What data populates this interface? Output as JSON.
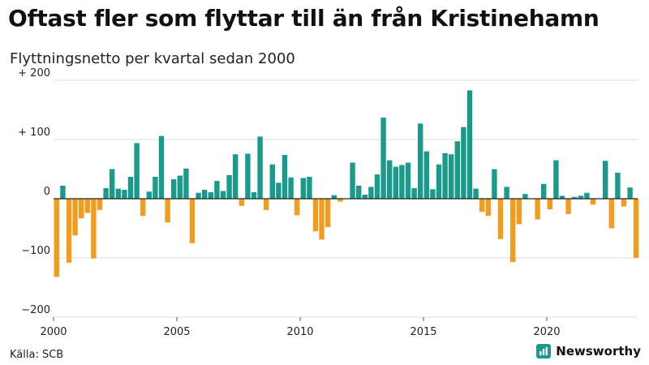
{
  "title": "Oftast fler som flyttar till än från Kristinehamn",
  "subtitle": "Flyttningsnetto per kvartal sedan 2000",
  "source": "Källa: SCB",
  "brand": {
    "name": "Newsworthy",
    "color": "#1c9a8a"
  },
  "colors": {
    "positive": "#1a9a8a",
    "negative": "#f29c1d",
    "grid": "#dddddd",
    "zero": "#222222"
  },
  "chart_data": {
    "type": "bar",
    "y_ticks": [
      {
        "value": 200,
        "label": "+ 200"
      },
      {
        "value": 100,
        "label": "+ 100"
      },
      {
        "value": 0,
        "label": "0"
      },
      {
        "value": -100,
        "label": "−100"
      },
      {
        "value": -200,
        "label": "−200"
      }
    ],
    "x_ticks": [
      {
        "value": 2000,
        "label": "2000"
      },
      {
        "value": 2005,
        "label": "2005"
      },
      {
        "value": 2010,
        "label": "2010"
      },
      {
        "value": 2015,
        "label": "2015"
      },
      {
        "value": 2020,
        "label": "2020"
      }
    ],
    "ylim": [
      -200,
      200
    ],
    "x_start": 2000,
    "periods_per_year": 4,
    "values": [
      -132,
      22,
      -108,
      -62,
      -33,
      -24,
      -101,
      -19,
      18,
      50,
      17,
      15,
      37,
      94,
      -29,
      12,
      37,
      106,
      -40,
      33,
      39,
      51,
      -75,
      10,
      15,
      11,
      30,
      13,
      40,
      75,
      -12,
      76,
      11,
      105,
      -19,
      58,
      27,
      74,
      36,
      -28,
      35,
      37,
      -55,
      -69,
      -48,
      6,
      -5,
      0,
      61,
      22,
      7,
      20,
      41,
      137,
      65,
      54,
      57,
      61,
      18,
      127,
      80,
      16,
      58,
      77,
      75,
      97,
      121,
      183,
      17,
      -22,
      -29,
      50,
      -68,
      20,
      -107,
      -43,
      8,
      0,
      -35,
      25,
      -18,
      65,
      5,
      -26,
      3,
      5,
      10,
      -10,
      0,
      64,
      -50,
      44,
      -13,
      19,
      -100
    ]
  }
}
